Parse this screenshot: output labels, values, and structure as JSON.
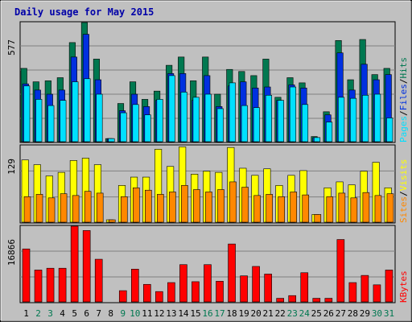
{
  "title": "Daily usage for May 2015",
  "colors": {
    "background": "#c0c0c0",
    "plot_background": "#c0c0c0",
    "title": "#0000a8",
    "grid": "#808080",
    "hits": "#007850",
    "files": "#0030e0",
    "pages": "#00e0ff",
    "visits": "#ffff00",
    "sites": "#ff8800",
    "kbytes": "#ff0000",
    "day_weekday": "#000000",
    "day_weekend": "#007850",
    "legend_sep": "#000000"
  },
  "chart_data": [
    {
      "type": "bar",
      "panel": "top",
      "scale_max_label": "577",
      "ylim": [
        0,
        577
      ],
      "categories": [
        "1",
        "2",
        "3",
        "4",
        "5",
        "6",
        "7",
        "8",
        "9",
        "10",
        "11",
        "12",
        "13",
        "14",
        "15",
        "16",
        "17",
        "18",
        "19",
        "20",
        "21",
        "22",
        "23",
        "24",
        "25",
        "26",
        "27",
        "28",
        "29",
        "30",
        "31"
      ],
      "series": [
        {
          "name": "Hits",
          "color_key": "hits",
          "values": [
            355,
            290,
            295,
            310,
            480,
            580,
            400,
            15,
            185,
            290,
            205,
            245,
            370,
            410,
            295,
            410,
            230,
            350,
            340,
            320,
            400,
            215,
            310,
            285,
            25,
            145,
            490,
            300,
            495,
            325,
            355
          ]
        },
        {
          "name": "Files",
          "color_key": "files",
          "values": [
            280,
            250,
            230,
            250,
            410,
            520,
            300,
            15,
            150,
            230,
            170,
            200,
            330,
            330,
            200,
            320,
            170,
            270,
            290,
            260,
            265,
            200,
            275,
            260,
            20,
            130,
            430,
            250,
            375,
            300,
            325
          ]
        },
        {
          "name": "Pages",
          "color_key": "pages",
          "values": [
            270,
            205,
            175,
            200,
            290,
            305,
            230,
            15,
            140,
            180,
            130,
            205,
            320,
            240,
            215,
            230,
            160,
            285,
            175,
            165,
            225,
            200,
            265,
            180,
            20,
            95,
            215,
            210,
            225,
            230,
            115
          ]
        }
      ]
    },
    {
      "type": "bar",
      "panel": "middle",
      "scale_max_label": "129",
      "ylim": [
        0,
        129
      ],
      "categories": [
        "1",
        "2",
        "3",
        "4",
        "5",
        "6",
        "7",
        "8",
        "9",
        "10",
        "11",
        "12",
        "13",
        "14",
        "15",
        "16",
        "17",
        "18",
        "19",
        "20",
        "21",
        "22",
        "23",
        "24",
        "25",
        "26",
        "27",
        "28",
        "29",
        "30",
        "31"
      ],
      "series": [
        {
          "name": "Visits",
          "color_key": "visits",
          "values": [
            105,
            97,
            78,
            84,
            104,
            108,
            97,
            4,
            62,
            76,
            76,
            123,
            94,
            127,
            81,
            86,
            84,
            126,
            91,
            79,
            90,
            62,
            79,
            87,
            13,
            58,
            68,
            63,
            86,
            101,
            58
          ]
        },
        {
          "name": "Sites",
          "color_key": "sites",
          "values": [
            43,
            47,
            41,
            48,
            45,
            52,
            49,
            4,
            43,
            58,
            54,
            47,
            51,
            62,
            55,
            51,
            55,
            68,
            59,
            45,
            47,
            43,
            51,
            46,
            13,
            43,
            49,
            41,
            50,
            45,
            48
          ]
        }
      ]
    },
    {
      "type": "bar",
      "panel": "bottom",
      "scale_max_label": "16866",
      "ylim": [
        0,
        16866
      ],
      "categories": [
        "1",
        "2",
        "3",
        "4",
        "5",
        "6",
        "7",
        "8",
        "9",
        "10",
        "11",
        "12",
        "13",
        "14",
        "15",
        "16",
        "17",
        "18",
        "19",
        "20",
        "21",
        "22",
        "23",
        "24",
        "25",
        "26",
        "27",
        "28",
        "29",
        "30",
        "31"
      ],
      "series": [
        {
          "name": "KBytes",
          "color_key": "kbytes",
          "values": [
            11800,
            7100,
            7500,
            7500,
            17200,
            15900,
            9500,
            0,
            2500,
            7300,
            3900,
            2300,
            4300,
            8300,
            4500,
            8300,
            4600,
            12900,
            5800,
            7900,
            6200,
            800,
            1400,
            6500,
            800,
            800,
            13900,
            4300,
            5900,
            3800,
            7100
          ]
        }
      ]
    }
  ],
  "legends": {
    "top": [
      "Pages",
      "/",
      "Files",
      "/",
      "Hits"
    ],
    "middle": [
      "Sites",
      "/",
      "Visits"
    ],
    "bottom": [
      "KBytes"
    ]
  },
  "weekend_days": [
    "2",
    "3",
    "9",
    "10",
    "16",
    "17",
    "23",
    "24",
    "30",
    "31"
  ]
}
